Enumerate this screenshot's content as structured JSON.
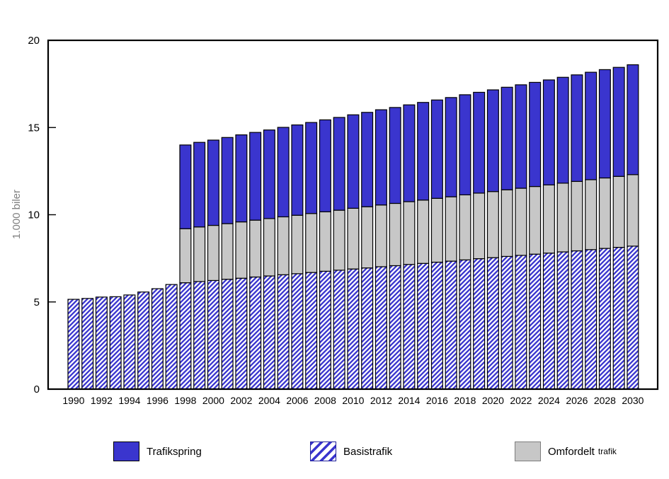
{
  "y_axis": {
    "label": "1.000 biler",
    "ticks": [
      0,
      5,
      10,
      15,
      20
    ],
    "max": 20
  },
  "x_axis": {
    "tick_years": [
      1990,
      1992,
      1994,
      1996,
      1998,
      2000,
      2002,
      2004,
      2006,
      2008,
      2010,
      2012,
      2014,
      2016,
      2018,
      2020,
      2022,
      2024,
      2026,
      2028,
      2030
    ]
  },
  "legend": {
    "items": [
      {
        "label": "Trafikspring",
        "swatch": "solid-blue"
      },
      {
        "label": "Basistrafik",
        "swatch": "hatched-blue"
      },
      {
        "label": "Omfordelt",
        "label_small": "trafik",
        "swatch": "solid-gray"
      }
    ]
  },
  "colors": {
    "trafikspring": "#3A35CE",
    "hatch_stripe": "#3A35CE",
    "omfordelt": "#C7C7C7",
    "outline": "#000000",
    "axis_title": "#808080",
    "tick_text": "#000000"
  },
  "chart_data": {
    "type": "bar",
    "stacked": true,
    "title": "",
    "xlabel": "",
    "ylabel": "1.000 biler",
    "ylim": [
      0,
      20
    ],
    "grid": false,
    "legend_position": "bottom",
    "categories": [
      1990,
      1991,
      1992,
      1993,
      1994,
      1995,
      1996,
      1997,
      1998,
      1999,
      2000,
      2001,
      2002,
      2003,
      2004,
      2005,
      2006,
      2007,
      2008,
      2009,
      2010,
      2011,
      2012,
      2013,
      2014,
      2015,
      2016,
      2017,
      2018,
      2019,
      2020,
      2021,
      2022,
      2023,
      2024,
      2025,
      2026,
      2027,
      2028,
      2029,
      2030
    ],
    "series": [
      {
        "name": "Basistrafik",
        "fill": "hatch",
        "values": [
          5.15,
          5.2,
          5.28,
          5.3,
          5.4,
          5.57,
          5.76,
          6.0,
          6.1,
          6.17,
          6.23,
          6.3,
          6.36,
          6.43,
          6.49,
          6.56,
          6.62,
          6.69,
          6.76,
          6.82,
          6.89,
          6.95,
          7.02,
          7.08,
          7.15,
          7.21,
          7.28,
          7.34,
          7.41,
          7.48,
          7.54,
          7.61,
          7.67,
          7.74,
          7.8,
          7.87,
          7.93,
          8.0,
          8.07,
          8.13,
          8.2
        ]
      },
      {
        "name": "Omfordelt trafik",
        "fill": "omfordelt",
        "values": [
          0,
          0,
          0,
          0,
          0,
          0,
          0,
          0,
          3.1,
          3.13,
          3.16,
          3.19,
          3.23,
          3.26,
          3.29,
          3.32,
          3.35,
          3.38,
          3.41,
          3.44,
          3.48,
          3.51,
          3.54,
          3.57,
          3.6,
          3.63,
          3.66,
          3.69,
          3.73,
          3.76,
          3.79,
          3.82,
          3.85,
          3.88,
          3.91,
          3.94,
          3.98,
          4.01,
          4.04,
          4.07,
          4.1
        ]
      },
      {
        "name": "Trafikspring",
        "fill": "trafikspring",
        "values": [
          0,
          0,
          0,
          0,
          0,
          0,
          0,
          0,
          4.8,
          4.85,
          4.89,
          4.94,
          4.99,
          5.03,
          5.08,
          5.13,
          5.18,
          5.22,
          5.27,
          5.32,
          5.36,
          5.41,
          5.46,
          5.5,
          5.55,
          5.6,
          5.64,
          5.69,
          5.74,
          5.78,
          5.83,
          5.88,
          5.93,
          5.97,
          6.02,
          6.07,
          6.11,
          6.16,
          6.21,
          6.25,
          6.3
        ]
      }
    ]
  }
}
